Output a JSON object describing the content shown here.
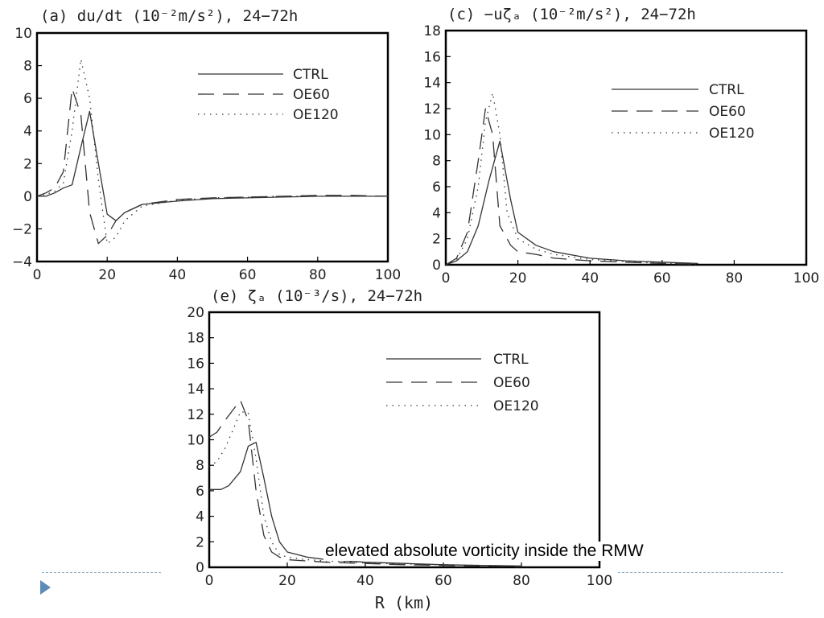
{
  "chart_data": [
    {
      "type": "line",
      "title": "(a) du/dt (10⁻²m/s²), 24−72h",
      "xlabel": "",
      "ylabel": "",
      "xlim": [
        0,
        100
      ],
      "ylim": [
        -4,
        10
      ],
      "xticks": [
        0,
        20,
        40,
        60,
        80,
        100
      ],
      "yticks": [
        -4,
        -2,
        0,
        2,
        4,
        6,
        8,
        10
      ],
      "ytick_labels": [
        "−4",
        "−2",
        "0",
        "2",
        "4",
        "6",
        "8",
        "10"
      ],
      "legend_position": "top-right",
      "grid": false,
      "series": [
        {
          "name": "CTRL",
          "style": "solid",
          "x": [
            0,
            2.5,
            5,
            7.5,
            10,
            12.5,
            15,
            17.5,
            20,
            22.5,
            25,
            30,
            40,
            50,
            60,
            70,
            80,
            90,
            100
          ],
          "y": [
            0,
            0,
            0.2,
            0.5,
            0.7,
            3,
            5.2,
            2,
            -1.1,
            -1.5,
            -1,
            -0.5,
            -0.3,
            -0.15,
            -0.1,
            -0.05,
            0,
            0,
            0
          ]
        },
        {
          "name": "OE60",
          "style": "dashed",
          "x": [
            0,
            2.5,
            5,
            7.5,
            10,
            12.5,
            15,
            17.5,
            20,
            22.5,
            25,
            30,
            40,
            50,
            60,
            70,
            80,
            90,
            100
          ],
          "y": [
            0,
            0.2,
            0.5,
            1.5,
            6.6,
            5,
            -1,
            -2.9,
            -2.4,
            -1.5,
            -1,
            -0.5,
            -0.2,
            -0.1,
            -0.05,
            0,
            0.05,
            0.05,
            0
          ]
        },
        {
          "name": "OE120",
          "style": "dotted",
          "x": [
            0,
            2.5,
            5,
            7.5,
            10,
            12.5,
            15,
            17.5,
            20,
            22.5,
            25,
            30,
            40,
            50,
            60,
            70,
            80,
            90,
            100
          ],
          "y": [
            0,
            0.1,
            0.3,
            0.8,
            4,
            8.4,
            6,
            1,
            -2.9,
            -2.5,
            -1.5,
            -0.6,
            -0.25,
            -0.1,
            -0.05,
            0,
            0,
            0,
            0
          ]
        }
      ]
    },
    {
      "type": "line",
      "title": "(c) −uζₐ (10⁻²m/s²), 24−72h",
      "xlabel": "",
      "ylabel": "",
      "xlim": [
        0,
        100
      ],
      "ylim": [
        0,
        18
      ],
      "xticks": [
        0,
        20,
        40,
        60,
        80,
        100
      ],
      "yticks": [
        0,
        2,
        4,
        6,
        8,
        10,
        12,
        14,
        16,
        18
      ],
      "ytick_labels": [
        "0",
        "2",
        "4",
        "6",
        "8",
        "10",
        "12",
        "14",
        "16",
        "18"
      ],
      "legend_position": "top-right",
      "grid": false,
      "series": [
        {
          "name": "CTRL",
          "style": "solid",
          "x": [
            0,
            3,
            6,
            9,
            12,
            15,
            18,
            20,
            25,
            30,
            40,
            50,
            60,
            70
          ],
          "y": [
            0,
            0.3,
            1,
            3,
            6.5,
            9.5,
            5,
            2.5,
            1.5,
            1,
            0.5,
            0.3,
            0.2,
            0.1
          ]
        },
        {
          "name": "OE60",
          "style": "dashed",
          "x": [
            0,
            3,
            6,
            9,
            11,
            13,
            15,
            18,
            20,
            25,
            30,
            40,
            50,
            60,
            70
          ],
          "y": [
            0,
            0.5,
            2.5,
            8,
            12,
            10,
            3,
            1.5,
            1,
            0.8,
            0.5,
            0.3,
            0.2,
            0.1,
            0.05
          ]
        },
        {
          "name": "OE120",
          "style": "dotted",
          "x": [
            0,
            3,
            6,
            9,
            11,
            13,
            15,
            17,
            20,
            25,
            30,
            40,
            50,
            60,
            70
          ],
          "y": [
            0,
            0.4,
            2,
            6,
            11,
            13.2,
            10,
            4,
            2,
            1.2,
            0.8,
            0.4,
            0.25,
            0.1,
            0.05
          ]
        }
      ]
    },
    {
      "type": "line",
      "title": "(e) ζₐ (10⁻³/s), 24−72h",
      "xlabel": "R (km)",
      "ylabel": "",
      "xlim": [
        0,
        100
      ],
      "ylim": [
        0,
        20
      ],
      "xticks": [
        0,
        20,
        40,
        60,
        80,
        100
      ],
      "yticks": [
        0,
        2,
        4,
        6,
        8,
        10,
        12,
        14,
        16,
        18,
        20
      ],
      "ytick_labels": [
        "0",
        "2",
        "4",
        "6",
        "8",
        "10",
        "12",
        "14",
        "16",
        "18",
        "20"
      ],
      "legend_position": "top-right",
      "grid": false,
      "series": [
        {
          "name": "CTRL",
          "style": "solid",
          "x": [
            0,
            3,
            5,
            8,
            10,
            12,
            14,
            16,
            18,
            20,
            25,
            30,
            40,
            50,
            60,
            70,
            80
          ],
          "y": [
            6.1,
            6.1,
            6.4,
            7.5,
            9.5,
            9.8,
            7,
            4,
            2,
            1.2,
            0.8,
            0.6,
            0.4,
            0.3,
            0.2,
            0.15,
            0.1
          ]
        },
        {
          "name": "OE60",
          "style": "dashed",
          "x": [
            0,
            2,
            4,
            6,
            8,
            10,
            12,
            14,
            16,
            18,
            20,
            25,
            30,
            40,
            50,
            60,
            70,
            80
          ],
          "y": [
            10.2,
            10.6,
            11.5,
            12.3,
            13.1,
            11.5,
            6,
            2.5,
            1.2,
            0.8,
            0.6,
            0.5,
            0.4,
            0.3,
            0.2,
            0.15,
            0.1,
            0.05
          ]
        },
        {
          "name": "OE120",
          "style": "dotted",
          "x": [
            0,
            2,
            4,
            6,
            8,
            10,
            12,
            14,
            16,
            18,
            20,
            25,
            30,
            40,
            50,
            60,
            70,
            80
          ],
          "y": [
            7.9,
            8.3,
            9.3,
            10.7,
            12.2,
            12.1,
            8.5,
            4,
            2,
            1,
            0.8,
            0.6,
            0.5,
            0.35,
            0.25,
            0.2,
            0.15,
            0.1
          ]
        }
      ]
    }
  ],
  "caption": "elevated absolute vorticity inside the RMW",
  "colors": {
    "line": "#333333",
    "axis": "#000000",
    "bullet": "#5b8db8",
    "footer_rule": "#8aa9c2"
  },
  "icons": {
    "bullet": "triangle-bullet-icon"
  }
}
